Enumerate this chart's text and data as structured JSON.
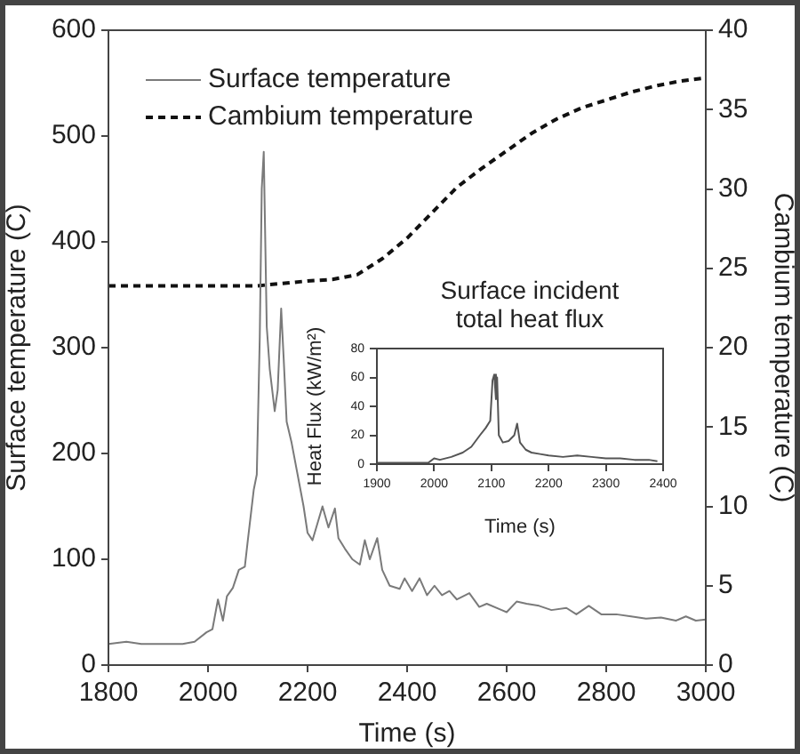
{
  "chart_data": [
    {
      "type": "line",
      "xlabel": "Time (s)",
      "ylabel": "Surface temperature (C)",
      "y2label": "Cambium temperature (C)",
      "xlim": [
        1800,
        3000
      ],
      "xticks": [
        1800,
        2000,
        2200,
        2400,
        2600,
        2800,
        3000
      ],
      "ylim": [
        0,
        600
      ],
      "yticks": [
        0,
        100,
        200,
        300,
        400,
        500,
        600
      ],
      "y2lim": [
        0,
        40
      ],
      "y2ticks": [
        0,
        5,
        10,
        15,
        20,
        25,
        30,
        35,
        40
      ],
      "grid": false,
      "legend": "top left",
      "marker": "none",
      "series": [
        {
          "name": "Surface temperature",
          "color": "#7a7a7a",
          "line_style": "solid",
          "x": [
            1800,
            1836,
            1866,
            1949,
            1973,
            1997,
            2009,
            2020,
            2030,
            2038,
            2050,
            2062,
            2074,
            2080,
            2092,
            2098,
            2104,
            2108,
            2112,
            2118,
            2124,
            2134,
            2140,
            2147,
            2152,
            2158,
            2168,
            2180,
            2192,
            2200,
            2210,
            2230,
            2242,
            2255,
            2262,
            2275,
            2290,
            2305,
            2315,
            2325,
            2340,
            2350,
            2365,
            2385,
            2395,
            2410,
            2425,
            2440,
            2455,
            2470,
            2485,
            2500,
            2525,
            2545,
            2560,
            2590,
            2600,
            2620,
            2640,
            2665,
            2690,
            2720,
            2740,
            2765,
            2790,
            2820,
            2850,
            2880,
            2910,
            2940,
            2960,
            2980,
            3000
          ],
          "values": [
            20,
            22,
            20,
            20,
            22,
            31,
            34,
            62,
            42,
            65,
            73,
            90,
            93,
            118,
            166,
            180,
            310,
            450,
            485,
            320,
            280,
            240,
            260,
            337,
            290,
            230,
            210,
            180,
            150,
            125,
            118,
            150,
            130,
            148,
            120,
            110,
            100,
            95,
            118,
            100,
            120,
            90,
            75,
            72,
            82,
            70,
            82,
            66,
            75,
            66,
            70,
            62,
            68,
            55,
            58,
            52,
            50,
            60,
            58,
            56,
            52,
            54,
            48,
            56,
            48,
            48,
            46,
            44,
            45,
            42,
            46,
            42,
            43
          ]
        },
        {
          "name": "Cambium temperature",
          "color": "#111111",
          "line_style": "dashed",
          "axis": "y2",
          "x": [
            1800,
            1900,
            2000,
            2100,
            2200,
            2250,
            2300,
            2350,
            2400,
            2450,
            2500,
            2550,
            2600,
            2650,
            2700,
            2750,
            2800,
            2850,
            2900,
            2950,
            3000
          ],
          "values": [
            23.9,
            23.9,
            23.9,
            23.9,
            24.2,
            24.3,
            24.6,
            25.6,
            26.9,
            28.5,
            30.1,
            31.3,
            32.4,
            33.5,
            34.4,
            35.1,
            35.6,
            36.1,
            36.5,
            36.8,
            37.0
          ]
        }
      ]
    },
    {
      "type": "line",
      "title": "Surface incident total heat flux",
      "xlabel": "Time (s)",
      "ylabel": "Heat Flux (kW/m²)",
      "xlim": [
        1900,
        2400
      ],
      "xticks": [
        1900,
        2000,
        2100,
        2200,
        2300,
        2400
      ],
      "ylim": [
        0,
        80
      ],
      "yticks": [
        0,
        20,
        40,
        60,
        80
      ],
      "grid": false,
      "marker": "none",
      "series": [
        {
          "color": "#555555",
          "line_style": "solid",
          "x": [
            1900,
            1950,
            1990,
            2000,
            2010,
            2030,
            2050,
            2065,
            2080,
            2090,
            2098,
            2102,
            2105,
            2108,
            2110,
            2113,
            2120,
            2130,
            2140,
            2145,
            2150,
            2160,
            2170,
            2185,
            2200,
            2225,
            2250,
            2275,
            2300,
            2325,
            2350,
            2375,
            2390
          ],
          "values": [
            1,
            1,
            1,
            4,
            3,
            5,
            8,
            12,
            20,
            25,
            30,
            58,
            62,
            45,
            60,
            20,
            15,
            16,
            20,
            28,
            15,
            10,
            8,
            7,
            6,
            5,
            6,
            5,
            4,
            4,
            3,
            3,
            2
          ]
        }
      ]
    }
  ]
}
